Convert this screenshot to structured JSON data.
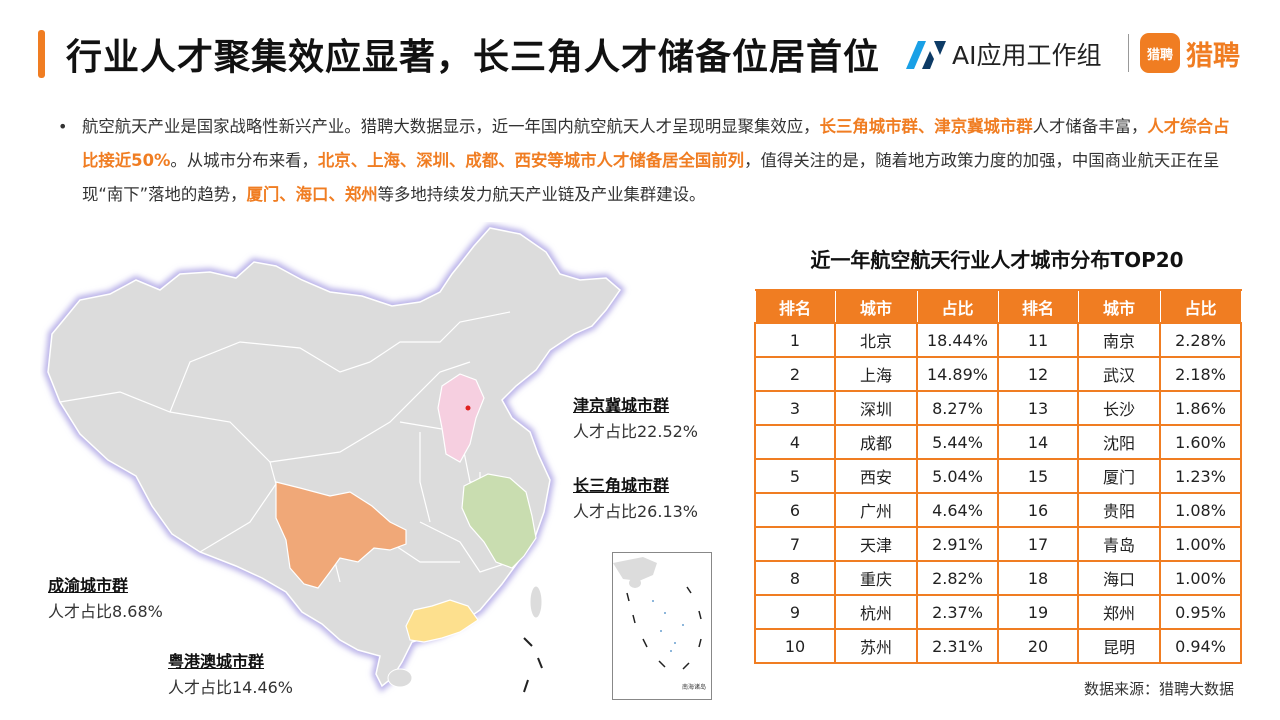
{
  "header": {
    "title": "行业人才聚集效应显著，长三角人才储备位居首位",
    "brand_ai_text": "AI应用工作组",
    "brand_lp_badge": "猎聘",
    "brand_lp_text": "猎聘"
  },
  "intro": {
    "bullet": "•",
    "p1": "航空航天产业是国家战略性新兴产业。猎聘大数据显示，近一年国内航空航天人才呈现明显聚集效应，",
    "h1": "长三角城市群、津京冀城市群",
    "p2": "人才储备丰富，",
    "h2": "人才综合占比接近50%",
    "p3": "。从城市分布来看，",
    "h3": "北京、上海、深圳、成都、西安等城市人才储备居全国前列",
    "p4": "，值得关注的是，随着地方政策力度的加强，中国商业航天正在呈现“南下”落地的趋势，",
    "h4": "厦门、海口、郑州",
    "p5": "等多地持续发力航天产业链及产业集群建设。"
  },
  "map": {
    "inset_label": "南海诸岛",
    "regions": [
      {
        "name": "津京冀城市群",
        "value": "人才占比22.52%",
        "color": "#f6cfe0"
      },
      {
        "name": "长三角城市群",
        "value": "人才占比26.13%",
        "color": "#c9ddb0"
      },
      {
        "name": "成渝城市群",
        "value": "人才占比8.68%",
        "color": "#f0a878"
      },
      {
        "name": "粤港澳城市群",
        "value": "人才占比14.46%",
        "color": "#fde08e"
      }
    ],
    "base_color": "#dcdcdc",
    "glow_color": "#b8b0e8"
  },
  "table": {
    "title": "近一年航空航天行业人才城市分布TOP20",
    "headers": [
      "排名",
      "城市",
      "占比",
      "排名",
      "城市",
      "占比"
    ],
    "rows": [
      [
        "1",
        "北京",
        "18.44%",
        "11",
        "南京",
        "2.28%"
      ],
      [
        "2",
        "上海",
        "14.89%",
        "12",
        "武汉",
        "2.18%"
      ],
      [
        "3",
        "深圳",
        "8.27%",
        "13",
        "长沙",
        "1.86%"
      ],
      [
        "4",
        "成都",
        "5.44%",
        "14",
        "沈阳",
        "1.60%"
      ],
      [
        "5",
        "西安",
        "5.04%",
        "15",
        "厦门",
        "1.23%"
      ],
      [
        "6",
        "广州",
        "4.64%",
        "16",
        "贵阳",
        "1.08%"
      ],
      [
        "7",
        "天津",
        "2.91%",
        "17",
        "青岛",
        "1.00%"
      ],
      [
        "8",
        "重庆",
        "2.82%",
        "18",
        "海口",
        "1.00%"
      ],
      [
        "9",
        "杭州",
        "2.37%",
        "19",
        "郑州",
        "0.95%"
      ],
      [
        "10",
        "苏州",
        "2.31%",
        "20",
        "昆明",
        "0.94%"
      ]
    ],
    "accent": "#f07d22"
  },
  "footer": {
    "source": "数据来源：猎聘大数据"
  }
}
